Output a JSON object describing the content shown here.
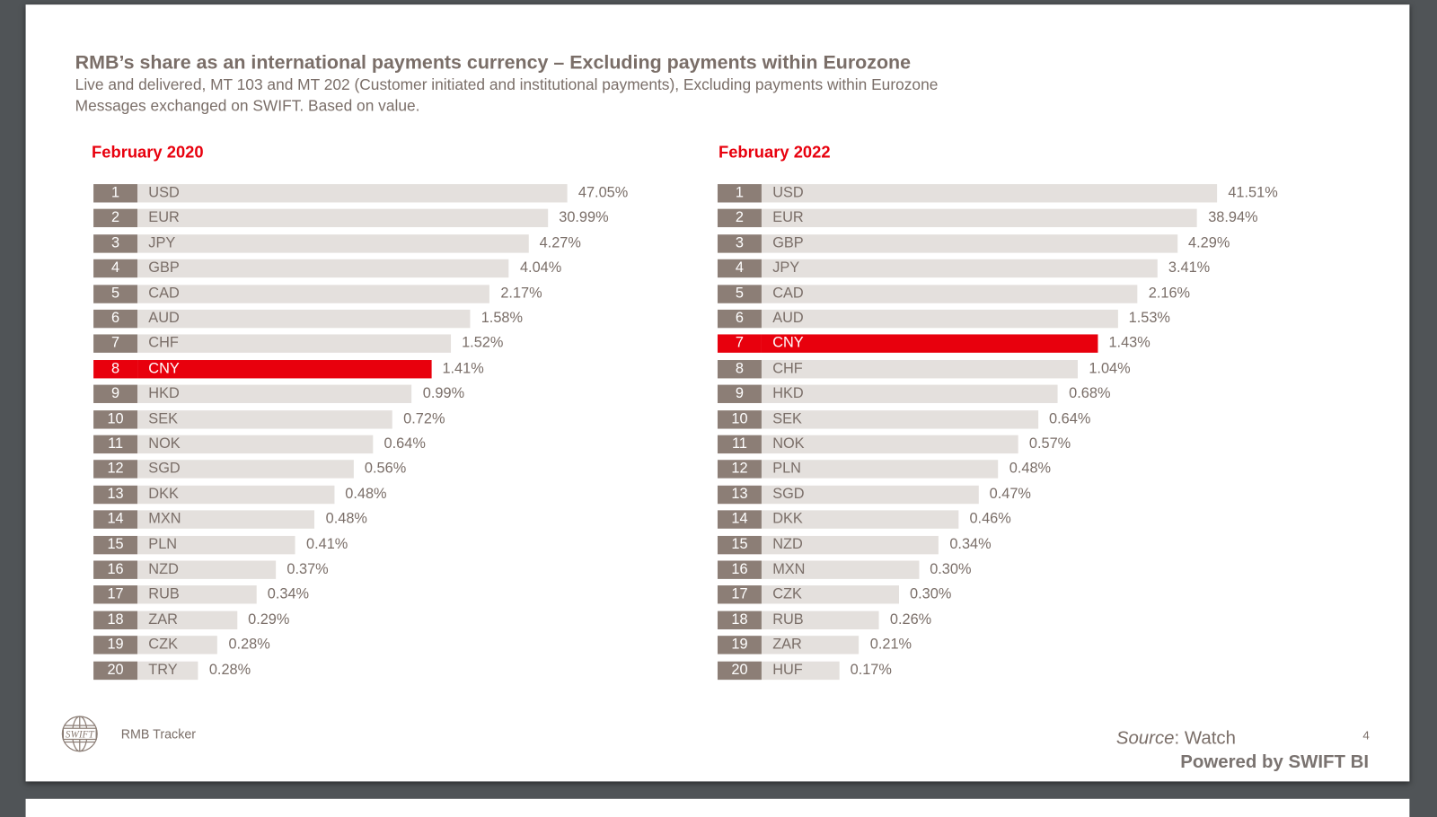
{
  "header": {
    "title": "RMB’s share as an international payments currency – Excluding payments within Eurozone",
    "subtitle_1": "Live and delivered,  MT 103 and MT 202 (Customer initiated and institutional payments), Excluding payments within Eurozone",
    "subtitle_2": "Messages exchanged on SWIFT. Based on value."
  },
  "chart_data": [
    {
      "type": "bar",
      "title": "February 2020",
      "highlight": "CNY",
      "highlight_color": "#e8000d",
      "bar_color": "#e4e0dd",
      "rank_color": "#8c7e76",
      "ranks": [
        1,
        2,
        3,
        4,
        5,
        6,
        7,
        8,
        9,
        10,
        11,
        12,
        13,
        14,
        15,
        16,
        17,
        18,
        19,
        20
      ],
      "categories": [
        "USD",
        "EUR",
        "JPY",
        "GBP",
        "CAD",
        "AUD",
        "CHF",
        "CNY",
        "HKD",
        "SEK",
        "NOK",
        "SGD",
        "DKK",
        "MXN",
        "PLN",
        "NZD",
        "RUB",
        "ZAR",
        "CZK",
        "TRY"
      ],
      "labels": [
        "47.05%",
        "30.99%",
        "4.27%",
        "4.04%",
        "2.17%",
        "1.58%",
        "1.52%",
        "1.41%",
        "0.99%",
        "0.72%",
        "0.64%",
        "0.56%",
        "0.48%",
        "0.48%",
        "0.41%",
        "0.37%",
        "0.34%",
        "0.29%",
        "0.28%",
        "0.28%"
      ],
      "values": [
        47.05,
        30.99,
        4.27,
        4.04,
        2.17,
        1.58,
        1.52,
        1.41,
        0.99,
        0.72,
        0.64,
        0.56,
        0.48,
        0.48,
        0.41,
        0.37,
        0.34,
        0.29,
        0.28,
        0.28
      ]
    },
    {
      "type": "bar",
      "title": "February 2022",
      "highlight": "CNY",
      "highlight_color": "#e8000d",
      "bar_color": "#e4e0dd",
      "rank_color": "#8c7e76",
      "ranks": [
        1,
        2,
        3,
        4,
        5,
        6,
        7,
        8,
        9,
        10,
        11,
        12,
        13,
        14,
        15,
        16,
        17,
        18,
        19,
        20
      ],
      "categories": [
        "USD",
        "EUR",
        "GBP",
        "JPY",
        "CAD",
        "AUD",
        "CNY",
        "CHF",
        "HKD",
        "SEK",
        "NOK",
        "PLN",
        "SGD",
        "DKK",
        "NZD",
        "MXN",
        "CZK",
        "RUB",
        "ZAR",
        "HUF"
      ],
      "labels": [
        "41.51%",
        "38.94%",
        "4.29%",
        "3.41%",
        "2.16%",
        "1.53%",
        "1.43%",
        "1.04%",
        "0.68%",
        "0.64%",
        "0.57%",
        "0.48%",
        "0.47%",
        "0.46%",
        "0.34%",
        "0.30%",
        "0.30%",
        "0.26%",
        "0.21%",
        "0.17%"
      ],
      "values": [
        41.51,
        38.94,
        4.29,
        3.41,
        2.16,
        1.53,
        1.43,
        1.04,
        0.68,
        0.64,
        0.57,
        0.48,
        0.47,
        0.46,
        0.34,
        0.3,
        0.3,
        0.26,
        0.21,
        0.17
      ]
    }
  ],
  "footer": {
    "logo_text": "SWIFT",
    "tracker": "RMB Tracker",
    "source_label": "Source",
    "source_value": ": Watch",
    "powered": "Powered by SWIFT BI",
    "page_number": "4"
  }
}
